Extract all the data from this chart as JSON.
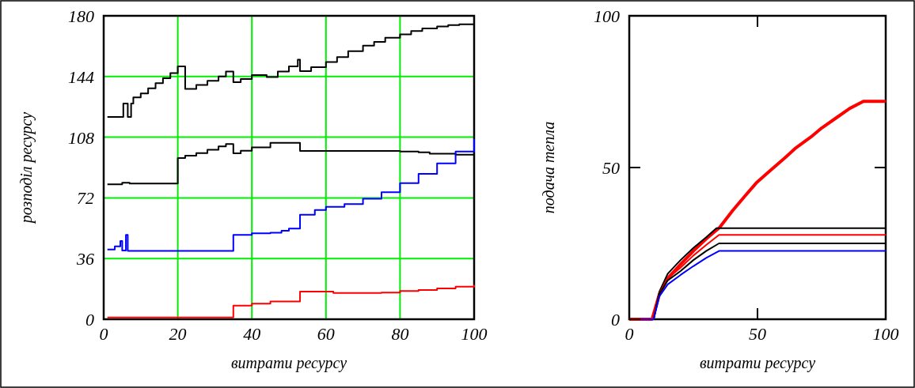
{
  "chart_data": [
    {
      "type": "step",
      "xlabel": "витрати ресурсу",
      "ylabel": "розподіл ресурсу",
      "xlim": [
        0,
        100
      ],
      "ylim": [
        0,
        180
      ],
      "xticks": [
        0,
        20,
        40,
        60,
        80,
        100
      ],
      "yticks": [
        0,
        36,
        72,
        108,
        144,
        180
      ],
      "grid": true,
      "marker": "none",
      "line_style": "solid",
      "series": [
        {
          "color": "#000000",
          "x": [
            1,
            5.3,
            6.5,
            7.4,
            8,
            10,
            12,
            14,
            16,
            18,
            20,
            22,
            25,
            28,
            31,
            33,
            35,
            37,
            40,
            44,
            47,
            50,
            52.4,
            53,
            56,
            60,
            63,
            66,
            70,
            73,
            76,
            80,
            83,
            86,
            90,
            93,
            96,
            100
          ],
          "values": [
            120,
            128,
            120,
            128,
            131.6,
            134,
            137,
            140,
            143,
            146,
            150,
            136.6,
            139,
            141.5,
            144,
            147,
            140.6,
            142.5,
            144.8,
            143.7,
            147,
            150,
            154,
            147.2,
            149.5,
            152.6,
            155.5,
            159,
            162.3,
            164.5,
            167,
            169,
            171,
            172.5,
            173.7,
            174.5,
            175,
            175
          ]
        },
        {
          "color": "#000000",
          "x": [
            1,
            5,
            7,
            20,
            22,
            25,
            28,
            31,
            33,
            35,
            37,
            40,
            45,
            53,
            60,
            70,
            80,
            85,
            88,
            95,
            100
          ],
          "values": [
            80,
            81,
            80.5,
            95.6,
            97,
            98.5,
            100.5,
            102.5,
            104,
            98.4,
            100,
            102,
            104.7,
            99.8,
            99.8,
            99.8,
            99.5,
            99,
            98.2,
            97.6,
            96.4
          ]
        },
        {
          "color": "#0000ff",
          "x": [
            1,
            3,
            4.5,
            5,
            6,
            6.5,
            35,
            40,
            45,
            48,
            50,
            53,
            57,
            60,
            65,
            70,
            75,
            80,
            85,
            90,
            95,
            100
          ],
          "values": [
            41.4,
            43.2,
            46.4,
            40.8,
            50,
            40.6,
            50,
            51,
            51.3,
            52.5,
            53.8,
            62,
            64.8,
            66.7,
            68.3,
            71.5,
            75.3,
            80.8,
            86.3,
            92.5,
            99.5,
            107
          ]
        },
        {
          "color": "#ff0000",
          "x": [
            1,
            35,
            40,
            45,
            53,
            62,
            75,
            80,
            85,
            90,
            95,
            100
          ],
          "values": [
            1,
            8.1,
            9.2,
            10.5,
            16.4,
            15.6,
            15.8,
            16.7,
            17.4,
            18.3,
            19.3,
            20.3
          ]
        }
      ]
    },
    {
      "type": "line",
      "xlabel": "витрати ресурсу",
      "ylabel": "подача тепла",
      "xlim": [
        0,
        100
      ],
      "ylim": [
        0,
        100
      ],
      "xticks": [
        0,
        50,
        100
      ],
      "yticks": [
        0,
        50,
        100
      ],
      "grid": false,
      "marker": "none",
      "line_style": "solid",
      "series": [
        {
          "color": "#ff0000",
          "x": [
            0,
            8.9,
            11.7,
            15,
            19.9,
            25,
            30,
            35.2,
            40.3,
            45,
            49.5,
            55,
            60.7,
            65,
            70.9,
            75,
            81.1,
            86,
            91.3,
            100
          ],
          "values": [
            0,
            0,
            8.1,
            13.5,
            18,
            22.5,
            26.5,
            30.2,
            35.8,
            40.5,
            44.9,
            49,
            53.2,
            56.5,
            60.1,
            63,
            66.6,
            69.5,
            71.8,
            71.8
          ]
        },
        {
          "color": "#000000",
          "x": [
            0,
            9.5,
            11.7,
            15,
            20,
            25,
            30,
            34,
            100
          ],
          "values": [
            0,
            0,
            9,
            15,
            19.5,
            23.5,
            27,
            30,
            30
          ]
        },
        {
          "color": "#ff0000",
          "x": [
            0,
            9.5,
            11.7,
            15,
            20,
            25,
            30,
            35,
            100
          ],
          "values": [
            0,
            0,
            8.5,
            13.5,
            17,
            21,
            24.5,
            27.8,
            27.8
          ]
        },
        {
          "color": "#000000",
          "x": [
            0,
            9.5,
            11.7,
            15,
            20,
            25,
            30,
            35,
            100
          ],
          "values": [
            0,
            0,
            8.3,
            12.8,
            15.9,
            19.5,
            22.5,
            25,
            25
          ]
        },
        {
          "color": "#0000ff",
          "x": [
            0,
            9.5,
            11.7,
            15,
            20,
            25,
            30,
            35,
            100
          ],
          "values": [
            0,
            0,
            7.5,
            11.5,
            14.6,
            17.5,
            20.2,
            22.5,
            22.5
          ]
        }
      ]
    }
  ]
}
